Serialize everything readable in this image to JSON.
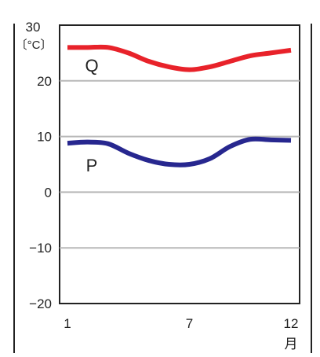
{
  "chart_data": {
    "type": "line",
    "y_top_label": "30",
    "y_unit": "〔°C〕",
    "x_unit": "月",
    "x_tick_labels": [
      "1",
      "7",
      "12"
    ],
    "y_tick_labels": [
      "20",
      "10",
      "0",
      "−10",
      "−20"
    ],
    "x": [
      1,
      2,
      3,
      4,
      5,
      6,
      7,
      8,
      9,
      10,
      11,
      12
    ],
    "xlim": [
      1,
      12
    ],
    "ylim": [
      -20,
      30
    ],
    "grid": true,
    "series": [
      {
        "name": "Q",
        "color": "#e8222a",
        "values": [
          26,
          26,
          26,
          25,
          23.5,
          22.5,
          22,
          22.5,
          23.5,
          24.5,
          25,
          25.5
        ]
      },
      {
        "name": "P",
        "color": "#27278f",
        "values": [
          8.8,
          9,
          8.7,
          7,
          5.7,
          5,
          5,
          6,
          8.2,
          9.5,
          9.4,
          9.3
        ]
      }
    ]
  }
}
